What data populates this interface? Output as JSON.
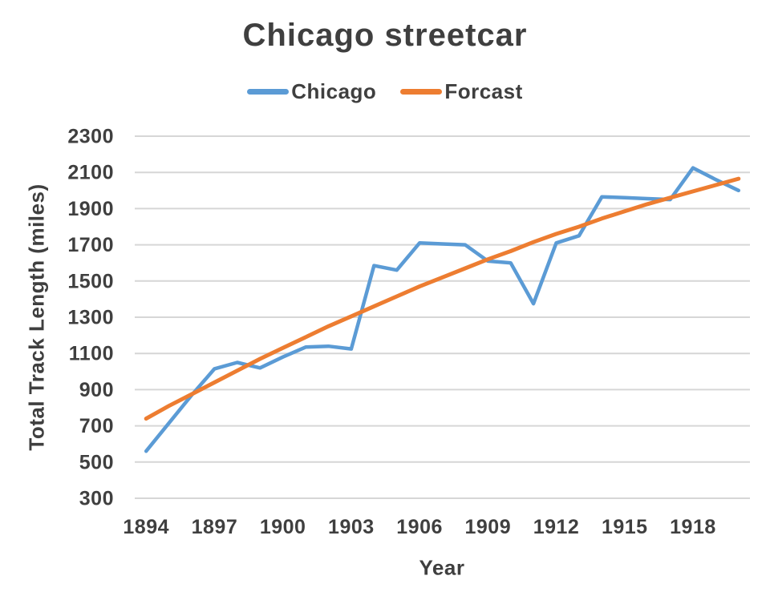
{
  "chart": {
    "background": "#ffffff",
    "text_color": "#3f3f3f",
    "gridline_color": "#d6d6d6"
  },
  "chart_data": {
    "type": "line",
    "title": "Chicago streetcar",
    "xlabel": "Year",
    "ylabel": "Total Track Length (miles)",
    "x": [
      1894,
      1895,
      1896,
      1897,
      1898,
      1899,
      1900,
      1901,
      1902,
      1903,
      1904,
      1905,
      1906,
      1907,
      1908,
      1909,
      1910,
      1911,
      1912,
      1913,
      1914,
      1915,
      1916,
      1917,
      1918,
      1919,
      1920
    ],
    "series": [
      {
        "name": "Chicago",
        "color": "#5B9BD5",
        "stroke_width": 4.5,
        "values": [
          560,
          715,
          870,
          1015,
          1050,
          1020,
          1080,
          1135,
          1140,
          1125,
          1585,
          1560,
          1710,
          1705,
          1700,
          1610,
          1600,
          1375,
          1710,
          1750,
          1965,
          1960,
          1955,
          1950,
          2125,
          2060,
          2000
        ]
      },
      {
        "name": "Forcast",
        "color": "#ED7D31",
        "stroke_width": 5,
        "values": [
          740,
          810,
          875,
          940,
          1005,
          1070,
          1130,
          1190,
          1250,
          1305,
          1360,
          1415,
          1470,
          1520,
          1570,
          1620,
          1665,
          1715,
          1760,
          1800,
          1845,
          1885,
          1925,
          1960,
          1995,
          2030,
          2065
        ]
      }
    ],
    "ylim": [
      300,
      2300
    ],
    "ytick_step": 200,
    "yticks": [
      300,
      500,
      700,
      900,
      1100,
      1300,
      1500,
      1700,
      1900,
      2100,
      2300
    ],
    "xticks": [
      1894,
      1897,
      1900,
      1903,
      1906,
      1909,
      1912,
      1915,
      1918
    ],
    "grid": "horizontal",
    "legend_position": "top",
    "markers": false
  }
}
